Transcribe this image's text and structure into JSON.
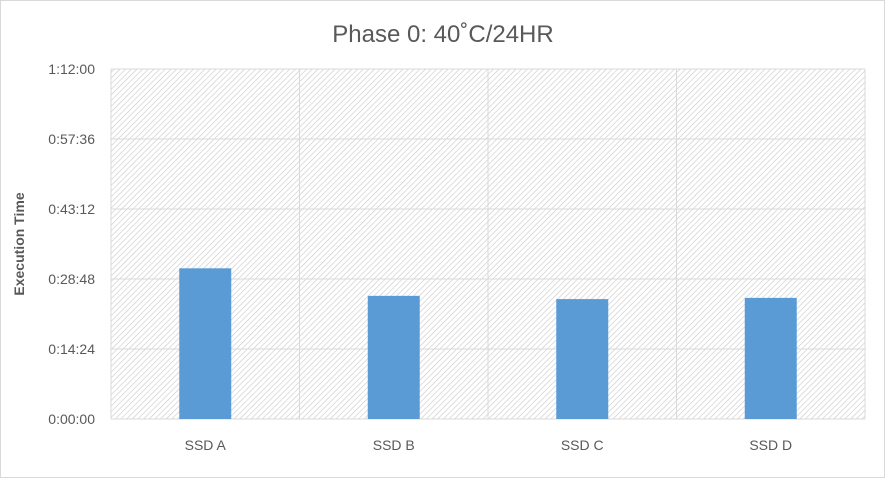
{
  "chart_data": {
    "type": "bar",
    "title": "Phase 0: 40˚C/24HR",
    "xlabel": "",
    "ylabel": "Execution Time",
    "categories": [
      "SSD A",
      "SSD B",
      "SSD C",
      "SSD D"
    ],
    "series": [
      {
        "values_seconds": [
          1860,
          1520,
          1480,
          1495
        ],
        "values": [
          "0:31:00",
          "0:25:20",
          "0:24:40",
          "0:24:55"
        ]
      }
    ],
    "ylim_seconds": [
      0,
      4320
    ],
    "yticks_seconds": [
      0,
      864,
      1728,
      2592,
      3456,
      4320
    ],
    "ytick_labels": [
      "0:00:00",
      "0:14:24",
      "0:28:48",
      "0:43:12",
      "0:57:36",
      "1:12:00"
    ],
    "grid": true,
    "legend": "none",
    "colors": {
      "bar": "#5b9bd5",
      "grid": "#d9d9d9",
      "hatch": "#c8c8c8",
      "text": "#595959"
    }
  }
}
